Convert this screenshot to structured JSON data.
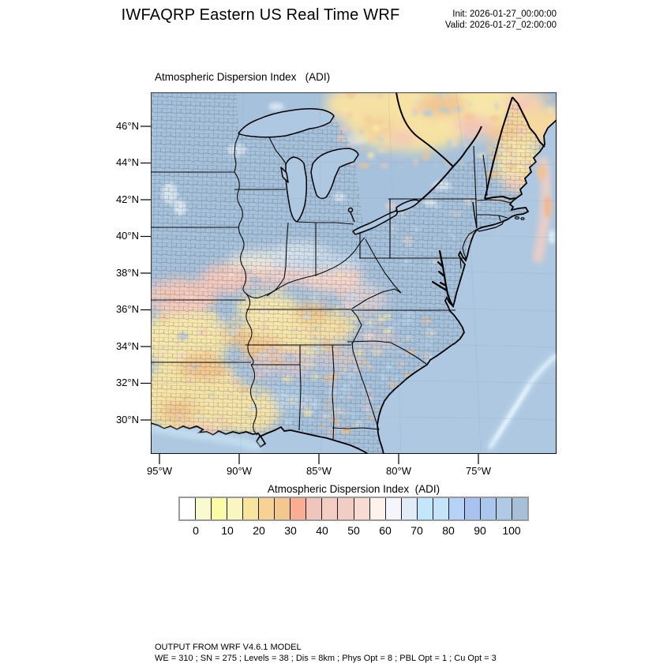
{
  "header": {
    "title": "IWFAQRP Eastern US Real Time WRF",
    "init_line": "Init: 2026-01-27_00:00:00",
    "valid_line": "Valid: 2026-01-27_02:00:00"
  },
  "map": {
    "title": "Atmospheric Dispersion Index   (ADI)",
    "lat_ticks": [
      "46°N",
      "44°N",
      "42°N",
      "40°N",
      "38°N",
      "36°N",
      "34°N",
      "32°N",
      "30°N"
    ],
    "lon_ticks": [
      "95°W",
      "90°W",
      "85°W",
      "80°W",
      "75°W"
    ]
  },
  "legend": {
    "title": "Atmospheric Dispersion Index  (ADI)",
    "tick_labels": [
      "0",
      "10",
      "20",
      "30",
      "40",
      "50",
      "60",
      "70",
      "80",
      "90",
      "100"
    ],
    "cell_colors": [
      "#FFFFFF",
      "#FAFAD0",
      "#FBFCA8",
      "#FAF6C2",
      "#F7E49E",
      "#F6D295",
      "#F3C78D",
      "#FBAD93",
      "#F0C5BB",
      "#F3CCC3",
      "#F2CDC4",
      "#F8DCD2",
      "#FDF2EC",
      "#F4F6FC",
      "#E2ECF8",
      "#C2E7FB",
      "#C4E4FA",
      "#B6D2F6",
      "#A9C2F0",
      "#ABC7EE",
      "#AFCBE4",
      "#A8C0D7"
    ]
  },
  "footer": {
    "line1": "OUTPUT FROM WRF V4.6.1 MODEL",
    "line2": "WE = 310 ; SN = 275 ; Levels = 38 ; Dis = 8km ; Phys Opt = 8 ; PBL Opt = 1 ; Cu Opt = 3"
  },
  "colors": {
    "ocean": "#AEC8E1",
    "land_high_adi": "#A6C1DB",
    "warm_yellow": "#F6E4A6",
    "warm_orange": "#F2C78F",
    "warm_pink": "#F3C9BE"
  }
}
